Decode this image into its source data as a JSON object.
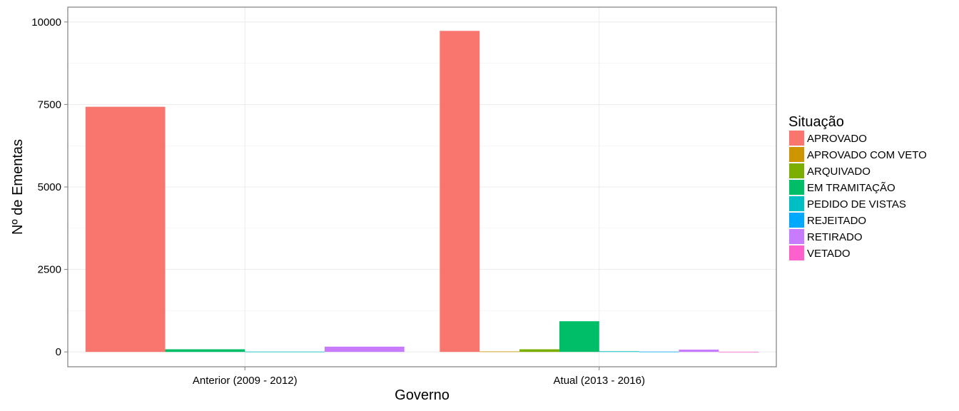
{
  "chart_data": {
    "type": "bar",
    "title": "",
    "xlabel": "Governo",
    "ylabel": "Nº de Ementas",
    "ylim": [
      -450,
      10450
    ],
    "yticks": [
      0,
      2500,
      5000,
      7500,
      10000
    ],
    "grid": true,
    "legend": {
      "title": "Situação",
      "placement": "right"
    },
    "categories": [
      "Anterior (2009 - 2012)",
      "Atual (2013 - 2016)"
    ],
    "series": [
      {
        "name": "APROVADO",
        "color": "#F8766D",
        "values": [
          7430,
          9730
        ]
      },
      {
        "name": "APROVADO COM VETO",
        "color": "#CD9600",
        "values": [
          0,
          15
        ]
      },
      {
        "name": "ARQUIVADO",
        "color": "#7CAE00",
        "values": [
          0,
          80
        ]
      },
      {
        "name": "EM TRAMITAÇÃO",
        "color": "#00BE67",
        "values": [
          80,
          930
        ]
      },
      {
        "name": "PEDIDO DE VISTAS",
        "color": "#00BFC4",
        "values": [
          10,
          20
        ]
      },
      {
        "name": "REJEITADO",
        "color": "#00A9FF",
        "values": [
          0,
          10
        ]
      },
      {
        "name": "RETIRADO",
        "color": "#C77CFF",
        "values": [
          160,
          70
        ]
      },
      {
        "name": "VETADO",
        "color": "#FF61CC",
        "values": [
          0,
          5
        ]
      }
    ]
  }
}
